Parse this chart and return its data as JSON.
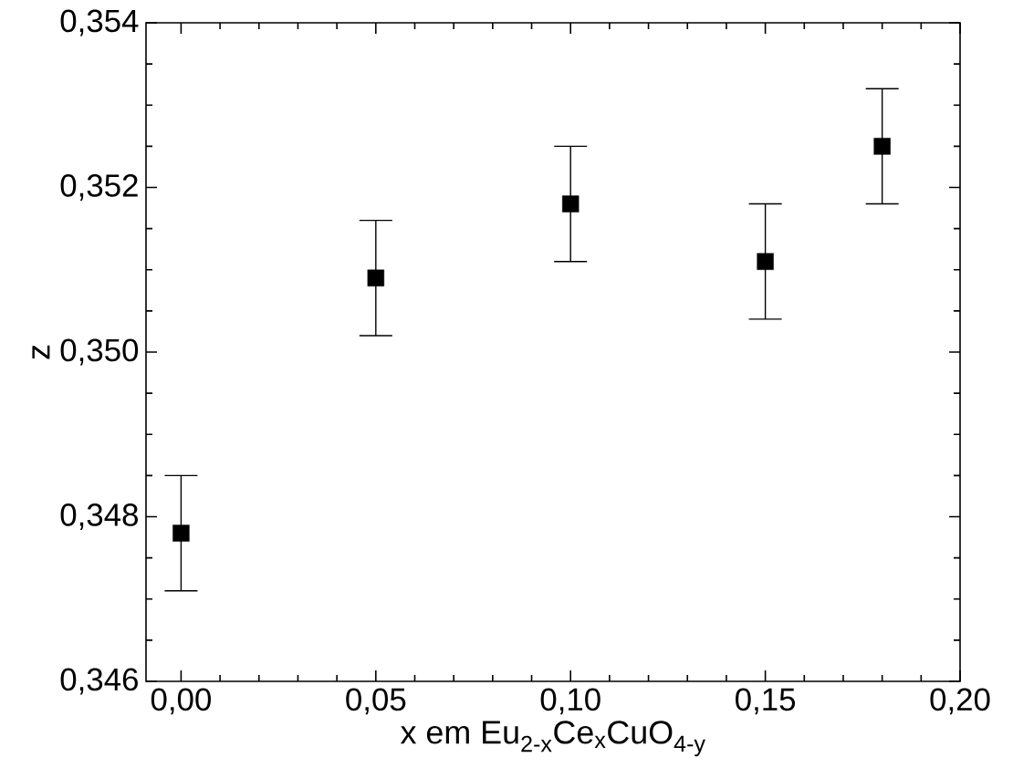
{
  "chart_data": {
    "type": "scatter",
    "xlabel": "x em Eu$_{2-x}$Ce$_{x}$CuO$_{4-y}$",
    "ylabel": "z",
    "x": [
      0.0,
      0.05,
      0.1,
      0.15,
      0.18
    ],
    "series": [
      {
        "color": "#000000",
        "values": [
          0.3478,
          0.3509,
          0.3518,
          0.3511,
          0.3525
        ],
        "errors": [
          0.0007,
          0.0007,
          0.0007,
          0.0007,
          0.0007
        ]
      }
    ],
    "marker": "square",
    "xlim": [
      -0.009,
      0.2
    ],
    "ylim": [
      0.346,
      0.354
    ],
    "xticks": [
      {
        "value": 0.0,
        "label": "0,00"
      },
      {
        "value": 0.05,
        "label": "0,05"
      },
      {
        "value": 0.1,
        "label": "0,10"
      },
      {
        "value": 0.15,
        "label": "0,15"
      },
      {
        "value": 0.2,
        "label": "0,20"
      }
    ],
    "yticks": [
      {
        "value": 0.346,
        "label": "0,346"
      },
      {
        "value": 0.348,
        "label": "0,348"
      },
      {
        "value": 0.35,
        "label": "0,350"
      },
      {
        "value": 0.352,
        "label": "0,352"
      },
      {
        "value": 0.354,
        "label": "0,354"
      }
    ],
    "grid": false
  }
}
